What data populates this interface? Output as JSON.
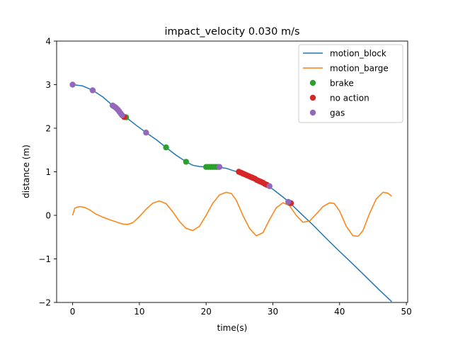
{
  "chart_data": {
    "type": "line",
    "title": "impact_velocity 0.030 m/s",
    "xlabel": "time(s)",
    "ylabel": "distance (m)",
    "xlim": [
      -2.4,
      50.2
    ],
    "ylim": [
      -2,
      4
    ],
    "xticks": [
      0,
      10,
      20,
      30,
      40,
      50
    ],
    "yticks": [
      -2,
      -1,
      0,
      1,
      2,
      3,
      4
    ],
    "xtick_labels": [
      "0",
      "10",
      "20",
      "30",
      "40",
      "50"
    ],
    "ytick_labels": [
      "−2",
      "−1",
      "0",
      "1",
      "2",
      "3",
      "4"
    ],
    "grid": false,
    "legend_position": "top-right",
    "series": [
      {
        "name": "motion_block",
        "kind": "line",
        "color": "#1f77b4",
        "x": [
          0,
          1.5,
          3,
          4.5,
          6,
          7,
          8,
          9.5,
          11,
          12.5,
          14,
          15.5,
          17,
          18,
          19,
          20,
          21,
          22,
          23,
          24,
          25,
          26,
          27,
          28,
          29,
          30,
          31,
          32,
          33,
          34,
          36,
          38,
          40,
          42,
          44,
          46,
          47.8
        ],
        "y": [
          3.0,
          2.97,
          2.87,
          2.72,
          2.52,
          2.38,
          2.25,
          2.07,
          1.9,
          1.74,
          1.56,
          1.38,
          1.23,
          1.15,
          1.12,
          1.11,
          1.11,
          1.1,
          1.08,
          1.03,
          0.98,
          0.91,
          0.84,
          0.77,
          0.69,
          0.6,
          0.48,
          0.36,
          0.22,
          0.07,
          -0.22,
          -0.53,
          -0.83,
          -1.12,
          -1.42,
          -1.72,
          -1.98
        ]
      },
      {
        "name": "motion_barge",
        "kind": "line",
        "color": "#ff7f0e",
        "x": [
          0,
          0.3,
          0.7,
          1.2,
          1.8,
          2.5,
          3.5,
          4.5,
          5.5,
          6.5,
          7.5,
          8.2,
          9,
          10,
          11,
          12,
          13,
          14,
          15,
          16,
          17,
          18,
          19,
          20,
          21,
          22,
          23,
          23.8,
          24.5,
          25.5,
          26.5,
          27.5,
          28.5,
          29.5,
          30.5,
          31.5,
          32.5,
          33.5,
          34.5,
          35.5,
          36.5,
          37.5,
          38.5,
          39.2,
          40,
          41,
          42,
          42.8,
          43.5,
          44.5,
          45.5,
          46.5,
          47.2,
          47.8
        ],
        "y": [
          0.0,
          0.16,
          0.19,
          0.2,
          0.18,
          0.13,
          0.03,
          -0.04,
          -0.1,
          -0.15,
          -0.2,
          -0.21,
          -0.17,
          -0.03,
          0.14,
          0.28,
          0.33,
          0.27,
          0.08,
          -0.14,
          -0.3,
          -0.35,
          -0.25,
          0.0,
          0.28,
          0.47,
          0.53,
          0.5,
          0.35,
          0.0,
          -0.3,
          -0.47,
          -0.4,
          -0.1,
          0.17,
          0.29,
          0.22,
          0.0,
          -0.16,
          -0.13,
          0.03,
          0.2,
          0.29,
          0.27,
          0.1,
          -0.25,
          -0.47,
          -0.48,
          -0.35,
          0.05,
          0.38,
          0.53,
          0.51,
          0.44
        ]
      },
      {
        "name": "brake",
        "kind": "points",
        "color": "#2ca02c",
        "x": [
          8,
          14,
          17,
          20,
          20.3,
          20.6,
          20.9,
          21.2,
          21.5,
          21.8,
          32.5
        ],
        "y": [
          2.25,
          1.56,
          1.23,
          1.11,
          1.11,
          1.11,
          1.11,
          1.11,
          1.11,
          1.11,
          0.29
        ]
      },
      {
        "name": "no action",
        "kind": "points",
        "color": "#d62728",
        "x": [
          7.7,
          24.9,
          25.2,
          25.5,
          25.8,
          26.1,
          26.4,
          26.7,
          27.0,
          27.3,
          27.6,
          27.9,
          28.2,
          28.5,
          28.8,
          29.1,
          32.7
        ],
        "y": [
          2.26,
          1.0,
          0.98,
          0.96,
          0.94,
          0.92,
          0.9,
          0.88,
          0.86,
          0.84,
          0.81,
          0.79,
          0.77,
          0.75,
          0.72,
          0.7,
          0.28
        ]
      },
      {
        "name": "gas",
        "kind": "points",
        "color": "#9467bd",
        "x": [
          0,
          3,
          6,
          6.2,
          6.4,
          6.6,
          6.8,
          7.0,
          7.2,
          7.4,
          11,
          22,
          29.5,
          32.3
        ],
        "y": [
          3.0,
          2.87,
          2.52,
          2.5,
          2.48,
          2.45,
          2.42,
          2.38,
          2.34,
          2.3,
          1.9,
          1.11,
          0.67,
          0.31
        ]
      }
    ]
  }
}
